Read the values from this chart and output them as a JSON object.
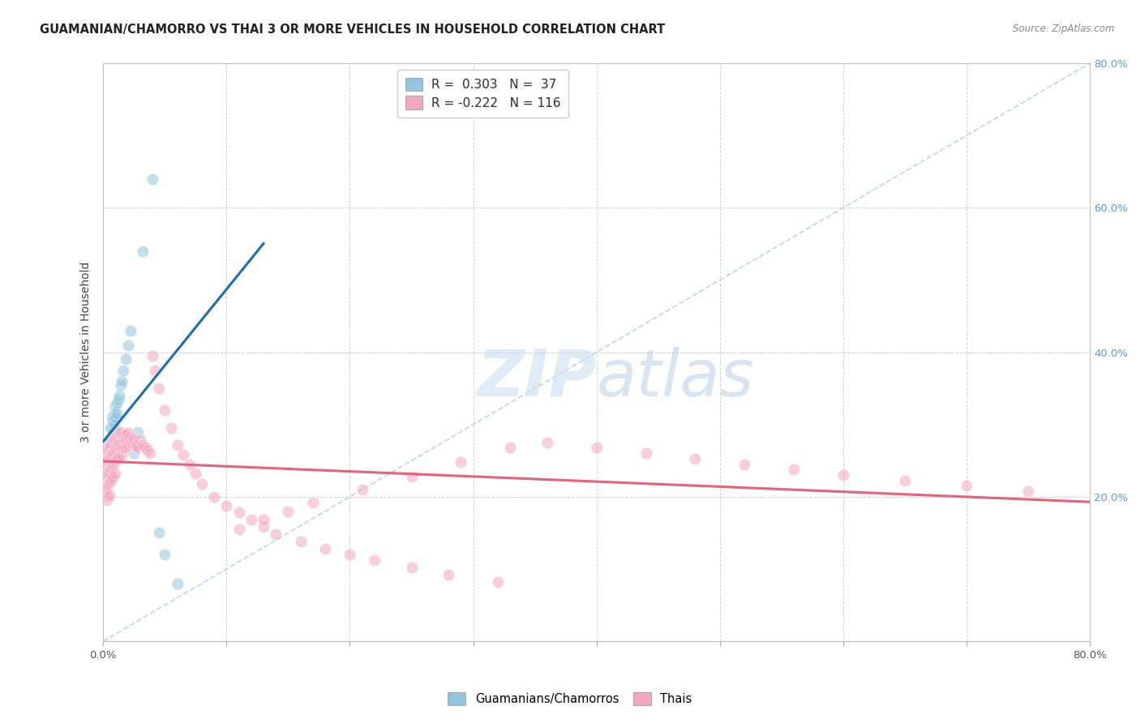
{
  "title": "GUAMANIAN/CHAMORRO VS THAI 3 OR MORE VEHICLES IN HOUSEHOLD CORRELATION CHART",
  "source": "Source: ZipAtlas.com",
  "ylabel": "3 or more Vehicles in Household",
  "xlim": [
    0.0,
    0.8
  ],
  "ylim": [
    0.0,
    0.8
  ],
  "blue_color": "#92c5de",
  "pink_color": "#f4a6c0",
  "blue_line_color": "#1a6faf",
  "pink_line_color": "#e8607a",
  "diagonal_color": "#b8d4ea",
  "R_guam": 0.303,
  "N_guam": 37,
  "R_thai": -0.222,
  "N_thai": 116,
  "guamanian_x": [
    0.002,
    0.003,
    0.003,
    0.004,
    0.004,
    0.005,
    0.005,
    0.005,
    0.006,
    0.006,
    0.006,
    0.007,
    0.007,
    0.007,
    0.008,
    0.008,
    0.009,
    0.009,
    0.01,
    0.01,
    0.011,
    0.011,
    0.012,
    0.013,
    0.014,
    0.015,
    0.016,
    0.018,
    0.02,
    0.022,
    0.025,
    0.028,
    0.032,
    0.04,
    0.045,
    0.05,
    0.06
  ],
  "guamanian_y": [
    0.25,
    0.24,
    0.26,
    0.255,
    0.27,
    0.265,
    0.275,
    0.28,
    0.27,
    0.28,
    0.295,
    0.285,
    0.295,
    0.31,
    0.29,
    0.305,
    0.3,
    0.315,
    0.31,
    0.325,
    0.315,
    0.33,
    0.335,
    0.34,
    0.355,
    0.36,
    0.375,
    0.39,
    0.41,
    0.43,
    0.26,
    0.29,
    0.54,
    0.64,
    0.15,
    0.12,
    0.08
  ],
  "thai_x": [
    0.001,
    0.001,
    0.001,
    0.002,
    0.002,
    0.002,
    0.002,
    0.003,
    0.003,
    0.003,
    0.003,
    0.003,
    0.004,
    0.004,
    0.004,
    0.004,
    0.004,
    0.005,
    0.005,
    0.005,
    0.005,
    0.005,
    0.006,
    0.006,
    0.006,
    0.006,
    0.007,
    0.007,
    0.007,
    0.007,
    0.008,
    0.008,
    0.008,
    0.008,
    0.009,
    0.009,
    0.009,
    0.01,
    0.01,
    0.01,
    0.01,
    0.011,
    0.011,
    0.011,
    0.012,
    0.012,
    0.012,
    0.013,
    0.013,
    0.014,
    0.014,
    0.015,
    0.015,
    0.015,
    0.016,
    0.016,
    0.017,
    0.018,
    0.018,
    0.019,
    0.02,
    0.02,
    0.021,
    0.022,
    0.023,
    0.024,
    0.025,
    0.026,
    0.027,
    0.028,
    0.03,
    0.032,
    0.034,
    0.036,
    0.038,
    0.04,
    0.042,
    0.045,
    0.05,
    0.055,
    0.06,
    0.065,
    0.07,
    0.075,
    0.08,
    0.09,
    0.1,
    0.11,
    0.12,
    0.13,
    0.14,
    0.16,
    0.18,
    0.2,
    0.22,
    0.25,
    0.28,
    0.32,
    0.36,
    0.4,
    0.44,
    0.48,
    0.52,
    0.56,
    0.6,
    0.65,
    0.7,
    0.75,
    0.33,
    0.29,
    0.25,
    0.21,
    0.17,
    0.15,
    0.13,
    0.11
  ],
  "thai_y": [
    0.25,
    0.23,
    0.21,
    0.26,
    0.245,
    0.228,
    0.21,
    0.265,
    0.25,
    0.232,
    0.215,
    0.195,
    0.268,
    0.252,
    0.235,
    0.218,
    0.2,
    0.27,
    0.255,
    0.238,
    0.22,
    0.202,
    0.272,
    0.258,
    0.24,
    0.222,
    0.275,
    0.26,
    0.242,
    0.225,
    0.278,
    0.262,
    0.245,
    0.228,
    0.28,
    0.265,
    0.247,
    0.282,
    0.268,
    0.25,
    0.232,
    0.284,
    0.27,
    0.252,
    0.286,
    0.272,
    0.254,
    0.288,
    0.274,
    0.286,
    0.268,
    0.29,
    0.275,
    0.258,
    0.285,
    0.268,
    0.28,
    0.285,
    0.268,
    0.278,
    0.288,
    0.27,
    0.282,
    0.278,
    0.275,
    0.272,
    0.28,
    0.272,
    0.27,
    0.268,
    0.278,
    0.272,
    0.268,
    0.265,
    0.26,
    0.395,
    0.375,
    0.35,
    0.32,
    0.295,
    0.272,
    0.258,
    0.245,
    0.232,
    0.218,
    0.2,
    0.188,
    0.178,
    0.168,
    0.158,
    0.148,
    0.138,
    0.128,
    0.12,
    0.112,
    0.102,
    0.092,
    0.082,
    0.275,
    0.268,
    0.26,
    0.252,
    0.245,
    0.238,
    0.23,
    0.222,
    0.215,
    0.208,
    0.268,
    0.248,
    0.228,
    0.21,
    0.192,
    0.18,
    0.168,
    0.155
  ]
}
